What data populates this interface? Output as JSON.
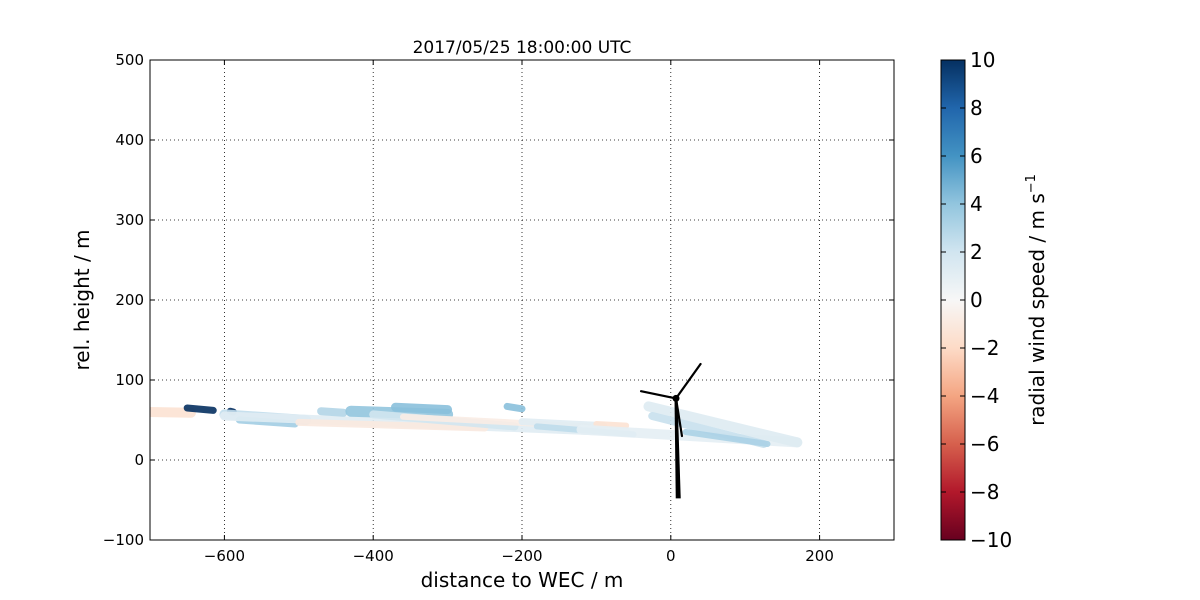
{
  "chart_data": {
    "type": "scatter",
    "title": "2017/05/25 18:00:00 UTC",
    "xlabel": "distance to WEC / m",
    "ylabel": "rel. height / m",
    "xlim": [
      -700,
      300
    ],
    "ylim": [
      -100,
      500
    ],
    "xticks": [
      -600,
      -400,
      -200,
      0,
      200
    ],
    "xtick_labels": [
      "−600",
      "−400",
      "−200",
      "0",
      "200"
    ],
    "yticks": [
      -100,
      0,
      100,
      200,
      300,
      400,
      500
    ],
    "ytick_labels": [
      "−100",
      "0",
      "100",
      "200",
      "300",
      "400",
      "500"
    ],
    "grid": true,
    "colorbar": {
      "label": "radial wind speed / m s",
      "label_superscript": "−1",
      "range": [
        -10,
        10
      ],
      "colormap": "RdBu",
      "ticks": [
        -10,
        -8,
        -6,
        -4,
        -2,
        0,
        2,
        4,
        6,
        8,
        10
      ],
      "tick_labels": [
        "−10",
        "−8",
        "−6",
        "−4",
        "−2",
        "0",
        "2",
        "4",
        "6",
        "8",
        "10"
      ]
    },
    "series": [
      {
        "x0": -700,
        "y0": 60,
        "x1": -645,
        "y1": 59,
        "speed": -1.5,
        "thick": 10
      },
      {
        "x0": -650,
        "y0": 65,
        "x1": -615,
        "y1": 62,
        "speed": 10,
        "thick": 7
      },
      {
        "x0": -592,
        "y0": 61,
        "x1": -588,
        "y1": 60,
        "speed": 10,
        "thick": 7
      },
      {
        "x0": -600,
        "y0": 57,
        "x1": -490,
        "y1": 50,
        "speed": 2.5,
        "thick": 10
      },
      {
        "x0": -580,
        "y0": 50,
        "x1": -505,
        "y1": 45,
        "speed": 3.5,
        "thick": 7
      },
      {
        "x0": -600,
        "y0": 55,
        "x1": -60,
        "y1": 35,
        "speed": 1.2,
        "thick": 9
      },
      {
        "x0": -500,
        "y0": 47,
        "x1": -250,
        "y1": 40,
        "speed": -1.0,
        "thick": 7
      },
      {
        "x0": -470,
        "y0": 61,
        "x1": -440,
        "y1": 59,
        "speed": 3.0,
        "thick": 8
      },
      {
        "x0": -430,
        "y0": 61,
        "x1": -300,
        "y1": 57,
        "speed": 4.0,
        "thick": 11
      },
      {
        "x0": -370,
        "y0": 66,
        "x1": -300,
        "y1": 63,
        "speed": 4.2,
        "thick": 9
      },
      {
        "x0": -400,
        "y0": 57,
        "x1": -210,
        "y1": 42,
        "speed": 2.0,
        "thick": 8
      },
      {
        "x0": -360,
        "y0": 54,
        "x1": -110,
        "y1": 42,
        "speed": -0.8,
        "thick": 6
      },
      {
        "x0": -220,
        "y0": 67,
        "x1": -200,
        "y1": 64,
        "speed": 4.2,
        "thick": 7
      },
      {
        "x0": -200,
        "y0": 48,
        "x1": -90,
        "y1": 43,
        "speed": 1.2,
        "thick": 7
      },
      {
        "x0": -180,
        "y0": 42,
        "x1": -50,
        "y1": 32,
        "speed": 2.6,
        "thick": 6
      },
      {
        "x0": -100,
        "y0": 45,
        "x1": -60,
        "y1": 43,
        "speed": -1.5,
        "thick": 6
      },
      {
        "x0": -120,
        "y0": 38,
        "x1": 170,
        "y1": 22,
        "speed": 1.0,
        "thick": 10
      },
      {
        "x0": -30,
        "y0": 67,
        "x1": 170,
        "y1": 22,
        "speed": 1.3,
        "thick": 10
      },
      {
        "x0": -25,
        "y0": 55,
        "x1": 125,
        "y1": 20,
        "speed": 2.3,
        "thick": 8
      },
      {
        "x0": 20,
        "y0": 35,
        "x1": 130,
        "y1": 20,
        "speed": 3.2,
        "thick": 6
      }
    ],
    "turbine": {
      "hub": [
        7,
        77
      ],
      "base": [
        10,
        -48
      ],
      "blade_tips": [
        [
          40,
          120
        ],
        [
          -40,
          86
        ],
        [
          15,
          30
        ]
      ]
    }
  }
}
